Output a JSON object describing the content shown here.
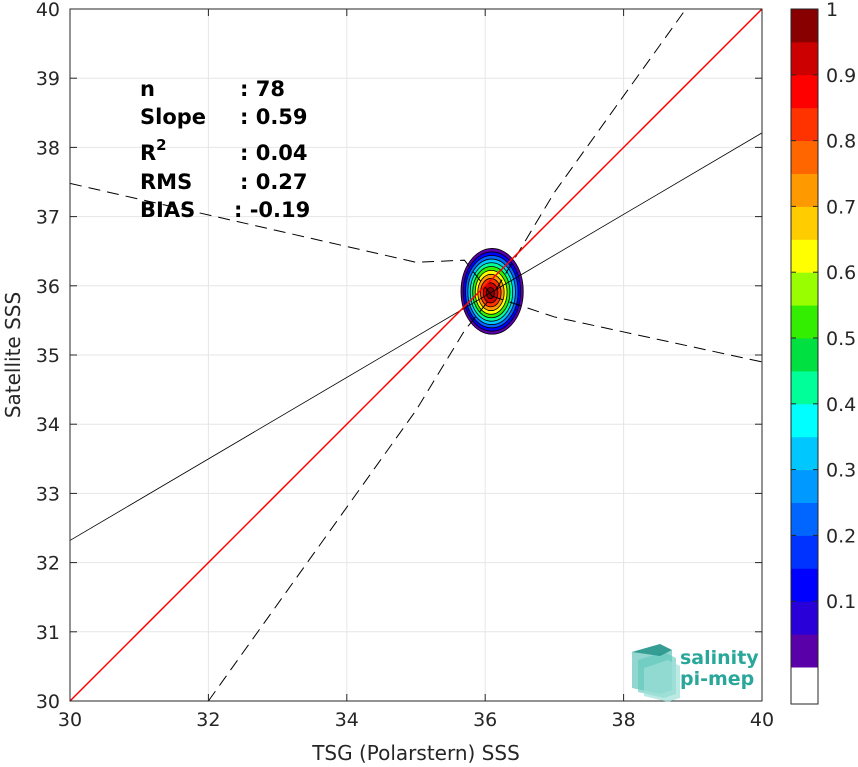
{
  "chart_data": {
    "type": "scatter",
    "title": "",
    "xlabel": "TSG (Polarstern) SSS",
    "ylabel": "Satellite SSS",
    "xlim": [
      30,
      40
    ],
    "ylim": [
      30,
      40
    ],
    "xticks": [
      30,
      32,
      34,
      36,
      38,
      40
    ],
    "yticks": [
      30,
      31,
      32,
      33,
      34,
      35,
      36,
      37,
      38,
      39,
      40
    ],
    "grid": true,
    "identity_line": {
      "x": [
        30,
        40
      ],
      "y": [
        30,
        40
      ],
      "color": "#ff0000"
    },
    "regression_line": {
      "x": [
        30,
        40
      ],
      "y": [
        32.32,
        38.21
      ],
      "color": "#000000"
    },
    "confidence_upper": {
      "x": [
        30,
        35,
        35.7,
        36.1,
        37,
        38.9
      ],
      "y": [
        37.48,
        36.34,
        36.37,
        35.85,
        37.35,
        40.0
      ]
    },
    "confidence_lower": {
      "x": [
        32,
        35,
        35.7,
        36.1,
        37,
        40
      ],
      "y": [
        30.0,
        34.2,
        35.35,
        35.85,
        35.55,
        34.9
      ]
    },
    "density_center": {
      "x": 36.1,
      "y": 35.92
    },
    "density_radii": {
      "x": 0.45,
      "y": 0.62
    },
    "colorbar": {
      "min": 0,
      "max": 1,
      "ticks": [
        0.1,
        0.2,
        0.3,
        0.4,
        0.5,
        0.6,
        0.7,
        0.8,
        0.9,
        1
      ],
      "tick_labels": [
        "0.1",
        "0.2",
        "0.3",
        "0.4",
        "0.5",
        "0.6",
        "0.7",
        "0.8",
        "0.9",
        "1"
      ],
      "bands": [
        "#5a00a8",
        "#2a00d8",
        "#0000ff",
        "#0033ff",
        "#0066ff",
        "#0099ff",
        "#00c8ff",
        "#00ffff",
        "#00ff99",
        "#00e040",
        "#33ee00",
        "#99ff00",
        "#ffff00",
        "#ffcc00",
        "#ff9900",
        "#ff6600",
        "#ff3300",
        "#ff0000",
        "#cc0000",
        "#880000"
      ]
    },
    "stats": [
      {
        "key": "n",
        "value": ": 78"
      },
      {
        "key": "Slope",
        "value": ": 0.59"
      },
      {
        "key": "R",
        "sup": "2",
        "value": ": 0.04"
      },
      {
        "key": "RMS",
        "value": ": 0.27"
      },
      {
        "key": "BIAS",
        "value": ": -0.19"
      }
    ]
  },
  "logo": {
    "line1": "salinity",
    "line2": "pi-mep"
  }
}
